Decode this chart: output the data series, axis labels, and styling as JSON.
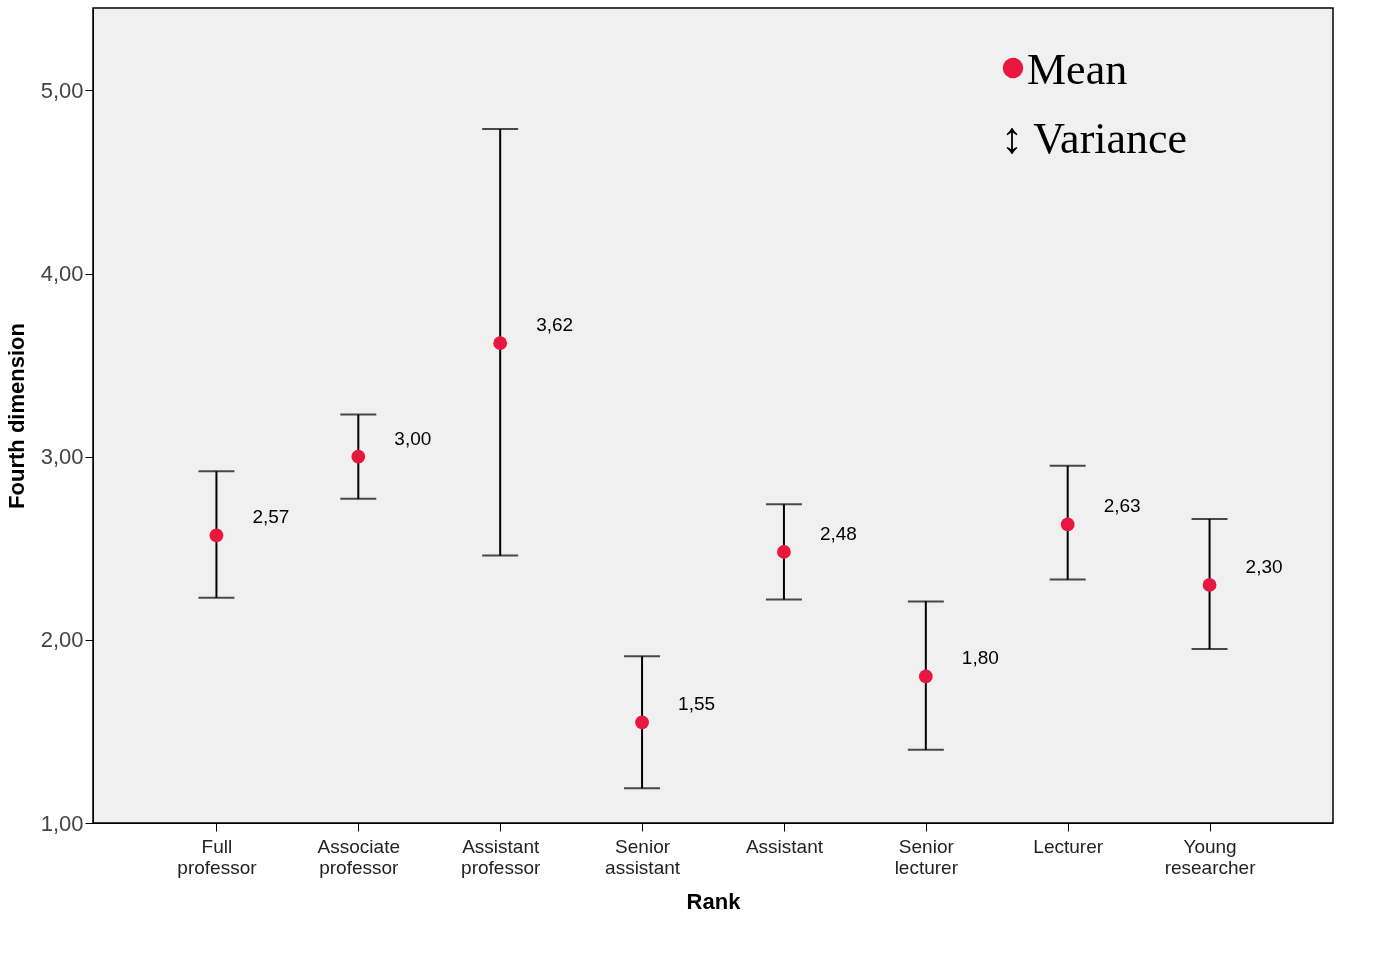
{
  "chart_data": {
    "type": "scatter",
    "xlabel": "Rank",
    "ylabel": "Fourth dimension",
    "categories": [
      "Full professor",
      "Associate professor",
      "Assistant professor",
      "Senior assistant",
      "Assistant",
      "Senior lecturer",
      "Lecturer",
      "Young researcher"
    ],
    "series": [
      {
        "name": "Mean",
        "color": "#e8173f",
        "values": [
          2.57,
          3.0,
          3.62,
          1.55,
          2.48,
          1.8,
          2.63,
          2.3
        ],
        "errors": [
          [
            2.23,
            2.92
          ],
          [
            2.77,
            3.23
          ],
          [
            2.46,
            4.79
          ],
          [
            1.19,
            1.91
          ],
          [
            2.22,
            2.74
          ],
          [
            1.4,
            2.21
          ],
          [
            2.33,
            2.95
          ],
          [
            1.95,
            2.66
          ]
        ],
        "value_labels": [
          "2,57",
          "3,00",
          "3,62",
          "1,55",
          "2,48",
          "1,80",
          "2,63",
          "2,30"
        ]
      }
    ],
    "ylim": [
      1.0,
      5.45
    ],
    "yticks": [
      {
        "value": 1,
        "label": "1,00"
      },
      {
        "value": 2,
        "label": "2,00"
      },
      {
        "value": 3,
        "label": "3,00"
      },
      {
        "value": 4,
        "label": "4,00"
      },
      {
        "value": 5,
        "label": "5,00"
      }
    ],
    "annotations": [
      "↕ Variance"
    ],
    "legend": "top right",
    "grid": false,
    "marker": "circle"
  }
}
